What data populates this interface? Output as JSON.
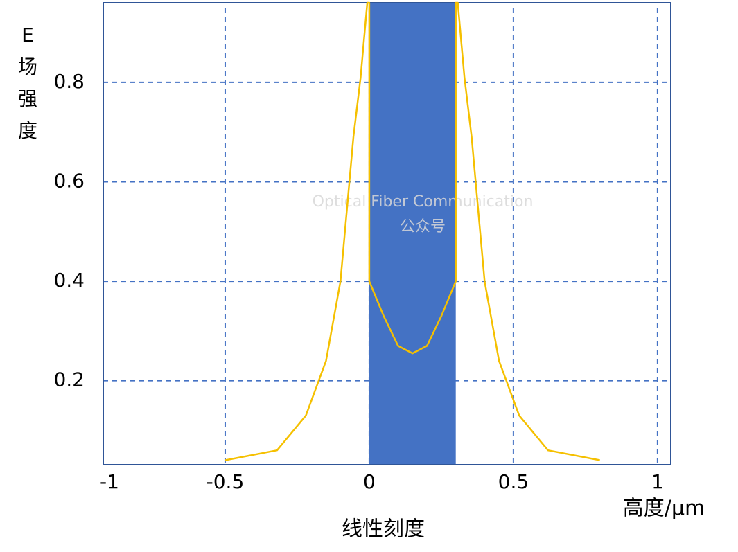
{
  "chart_data": {
    "type": "line",
    "y_label": "E场强度",
    "x_label": "线性刻度",
    "x_unit_label": "高度/μm",
    "watermark": [
      "Optical Fiber Communication",
      "公众号"
    ],
    "x": [
      -0.5,
      -0.32,
      -0.22,
      -0.15,
      -0.1,
      -0.055,
      -0.03,
      -0.007,
      0,
      0,
      0.05,
      0.1,
      0.15,
      0.2,
      0.25,
      0.3,
      0.3,
      0.307,
      0.33,
      0.355,
      0.4,
      0.45,
      0.52,
      0.62,
      0.8
    ],
    "values": [
      0.04,
      0.06,
      0.13,
      0.24,
      0.4,
      0.69,
      0.81,
      0.96,
      0.96,
      0.4,
      0.33,
      0.27,
      0.255,
      0.27,
      0.33,
      0.4,
      0.96,
      0.96,
      0.81,
      0.69,
      0.4,
      0.24,
      0.13,
      0.06,
      0.04
    ],
    "color": "#f5c000",
    "band": [
      0,
      0.3
    ],
    "band_color": "#4472c4",
    "xlim": [
      -0.923,
      1.046
    ],
    "ylim": [
      0.031,
      0.96
    ],
    "xticks": [
      -1,
      -0.5,
      0,
      0.5,
      1
    ],
    "yticks": [
      0.2,
      0.4,
      0.6,
      0.8
    ],
    "grid": true,
    "grid_color": "#4472c4"
  }
}
